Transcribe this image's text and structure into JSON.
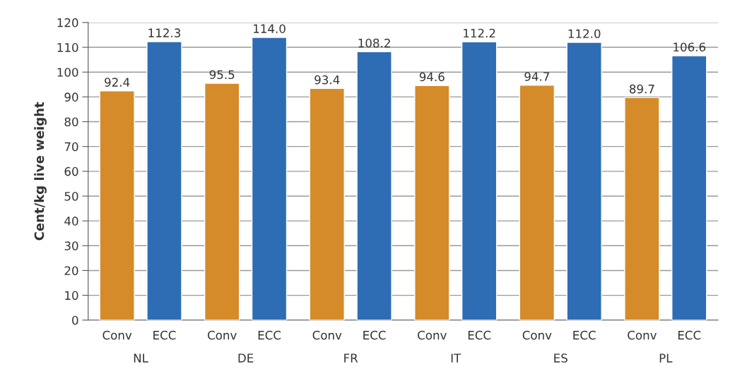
{
  "chart_data": {
    "type": "bar",
    "ylabel": "Cent/kg live weight",
    "categories": [
      "NL",
      "DE",
      "FR",
      "IT",
      "ES",
      "PL"
    ],
    "series": [
      {
        "name": "Conv",
        "color": "#d58b2a",
        "values": [
          92.4,
          95.5,
          93.4,
          94.6,
          94.7,
          89.7
        ],
        "value_labels": [
          "92.4",
          "95.5",
          "93.4",
          "94.6",
          "94.7",
          "89.7"
        ]
      },
      {
        "name": "ECC",
        "color": "#2e6db4",
        "values": [
          112.3,
          114.0,
          108.2,
          112.2,
          112.0,
          106.6
        ],
        "value_labels": [
          "112.3",
          "114.0",
          "108.2",
          "112.2",
          "112.0",
          "106.6"
        ]
      }
    ],
    "ylim": [
      0,
      120
    ],
    "yticks": [
      0,
      10,
      20,
      30,
      40,
      50,
      60,
      70,
      80,
      90,
      100,
      110,
      120
    ],
    "grid": "y",
    "legend": false
  }
}
